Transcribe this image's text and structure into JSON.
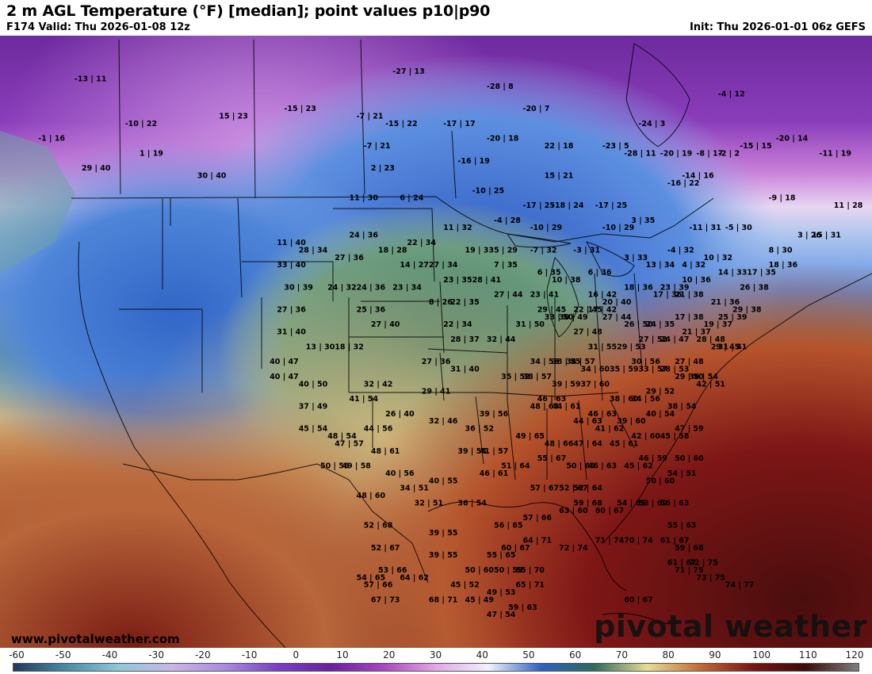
{
  "header": {
    "title": "2 m AGL Temperature (°F) [median]; point values p10|p90",
    "valid": "F174 Valid: Thu 2026-01-08 12z",
    "init": "Init: Thu 2026-01-01 06z GEFS"
  },
  "footer": {
    "credit": "www.pivotalweather.com",
    "brand": "pivotal weather"
  },
  "colorbar": {
    "ticks": [
      "-60",
      "-50",
      "-40",
      "-30",
      "-20",
      "-10",
      "0",
      "10",
      "20",
      "30",
      "40",
      "50",
      "60",
      "70",
      "80",
      "90",
      "100",
      "110",
      "120"
    ],
    "stops": [
      "#1f3a5c",
      "#4a8aa8",
      "#8ec9d6",
      "#c9b6e6",
      "#a78be0",
      "#7a3fc4",
      "#6b1f9e",
      "#a945c0",
      "#e3a7e6",
      "#eef2fb",
      "#2d5fc2",
      "#2f6b5a",
      "#e6dc94",
      "#c26a37",
      "#7a1414",
      "#3c0b0b",
      "#7d7d7d"
    ]
  },
  "points": [
    {
      "text": "-13 | 11",
      "lon": -155,
      "lat": 68
    },
    {
      "text": "-1 | 16",
      "lon": -160,
      "lat": 60
    },
    {
      "text": "-10 | 22",
      "lon": -148,
      "lat": 62
    },
    {
      "text": "1 | 19",
      "lon": -146,
      "lat": 58
    },
    {
      "text": "29 | 40",
      "lon": -154,
      "lat": 56
    },
    {
      "text": "30 | 40",
      "lon": -138,
      "lat": 55
    },
    {
      "text": "15 | 23",
      "lon": -135,
      "lat": 63
    },
    {
      "text": "-27 | 13",
      "lon": -111,
      "lat": 69
    },
    {
      "text": "-28 | 8",
      "lon": -98,
      "lat": 67
    },
    {
      "text": "-20 | 7",
      "lon": -93,
      "lat": 64
    },
    {
      "text": "-24 | 3",
      "lon": -77,
      "lat": 62
    },
    {
      "text": "-23 | 5",
      "lon": -82,
      "lat": 59
    },
    {
      "text": "-2 | 2",
      "lon": -66,
      "lat": 58
    },
    {
      "text": "-15 | 23",
      "lon": -126,
      "lat": 64
    },
    {
      "text": "-7 | 21",
      "lon": -116,
      "lat": 63
    },
    {
      "text": "-15 | 22",
      "lon": -112,
      "lat": 62
    },
    {
      "text": "-17 | 17",
      "lon": -104,
      "lat": 62
    },
    {
      "text": "-20 | 18",
      "lon": -98,
      "lat": 60
    },
    {
      "text": "22 | 18",
      "lon": -90,
      "lat": 59
    },
    {
      "text": "-28 | 11",
      "lon": -79,
      "lat": 58
    },
    {
      "text": "-20 | 19",
      "lon": -74,
      "lat": 58
    },
    {
      "text": "-7 | 21",
      "lon": -115,
      "lat": 59
    },
    {
      "text": "-16 | 19",
      "lon": -102,
      "lat": 57
    },
    {
      "text": "15 | 21",
      "lon": -90,
      "lat": 55
    },
    {
      "text": "-16 | 22",
      "lon": -73,
      "lat": 54
    },
    {
      "text": "2 | 23",
      "lon": -114,
      "lat": 56
    },
    {
      "text": "-10 | 25",
      "lon": -100,
      "lat": 53
    },
    {
      "text": "6 | 24",
      "lon": -110,
      "lat": 52
    },
    {
      "text": "11 | 30",
      "lon": -117,
      "lat": 52
    },
    {
      "text": "-17 | 25",
      "lon": -93,
      "lat": 51
    },
    {
      "text": "-18 | 24",
      "lon": -89,
      "lat": 51
    },
    {
      "text": "-17 | 25",
      "lon": -83,
      "lat": 51
    },
    {
      "text": "11 | 32",
      "lon": -104,
      "lat": 48
    },
    {
      "text": "-4 | 28",
      "lon": -97,
      "lat": 49
    },
    {
      "text": "-10 | 29",
      "lon": -92,
      "lat": 48
    },
    {
      "text": "-10 | 29",
      "lon": -82,
      "lat": 48
    },
    {
      "text": "3 | 35",
      "lon": -78,
      "lat": 49
    },
    {
      "text": "-11 | 31",
      "lon": -70,
      "lat": 48
    },
    {
      "text": "-5 | 30",
      "lon": -65,
      "lat": 48
    },
    {
      "text": "-9 | 18",
      "lon": -59,
      "lat": 52
    },
    {
      "text": "3 | 26",
      "lon": -55,
      "lat": 47
    },
    {
      "text": "15 | 31",
      "lon": -53,
      "lat": 47
    },
    {
      "text": "11 | 28",
      "lon": -50,
      "lat": 51
    },
    {
      "text": "8 | 30",
      "lon": -59,
      "lat": 45
    },
    {
      "text": "-4 | 32",
      "lon": -73,
      "lat": 45
    },
    {
      "text": "-8 | 17",
      "lon": -69,
      "lat": 58
    },
    {
      "text": "-14 | 16",
      "lon": -71,
      "lat": 55
    },
    {
      "text": "-15 | 15",
      "lon": -63,
      "lat": 59
    },
    {
      "text": "-20 | 14",
      "lon": -58,
      "lat": 60
    },
    {
      "text": "-11 | 19",
      "lon": -52,
      "lat": 58
    },
    {
      "text": "-4 | 12",
      "lon": -66,
      "lat": 66
    },
    {
      "text": "11 | 40",
      "lon": -127,
      "lat": 46
    },
    {
      "text": "28 | 34",
      "lon": -124,
      "lat": 45
    },
    {
      "text": "24 | 36",
      "lon": -117,
      "lat": 47
    },
    {
      "text": "27 | 36",
      "lon": -119,
      "lat": 44
    },
    {
      "text": "18 | 28",
      "lon": -113,
      "lat": 45
    },
    {
      "text": "22 | 34",
      "lon": -109,
      "lat": 46
    },
    {
      "text": "19 | 33",
      "lon": -101,
      "lat": 45
    },
    {
      "text": "5 | 29",
      "lon": -97,
      "lat": 45
    },
    {
      "text": "-7 | 32",
      "lon": -92,
      "lat": 45
    },
    {
      "text": "-3 | 31",
      "lon": -86,
      "lat": 45
    },
    {
      "text": "3 | 33",
      "lon": -79,
      "lat": 44
    },
    {
      "text": "33 | 40",
      "lon": -127,
      "lat": 43
    },
    {
      "text": "14 | 27",
      "lon": -110,
      "lat": 43
    },
    {
      "text": "27 | 34",
      "lon": -106,
      "lat": 43
    },
    {
      "text": "7 | 35",
      "lon": -97,
      "lat": 43
    },
    {
      "text": "6 | 35",
      "lon": -91,
      "lat": 42
    },
    {
      "text": "4 | 32",
      "lon": -71,
      "lat": 43
    },
    {
      "text": "10 | 32",
      "lon": -68,
      "lat": 44
    },
    {
      "text": "18 | 36",
      "lon": -59,
      "lat": 43
    },
    {
      "text": "17 | 35",
      "lon": -62,
      "lat": 42
    },
    {
      "text": "30 | 39",
      "lon": -126,
      "lat": 40
    },
    {
      "text": "24 | 32",
      "lon": -120,
      "lat": 40
    },
    {
      "text": "24 | 36",
      "lon": -116,
      "lat": 40
    },
    {
      "text": "23 | 34",
      "lon": -111,
      "lat": 40
    },
    {
      "text": "23 | 35",
      "lon": -104,
      "lat": 41
    },
    {
      "text": "28 | 41",
      "lon": -100,
      "lat": 41
    },
    {
      "text": "10 | 38",
      "lon": -89,
      "lat": 41
    },
    {
      "text": "6 | 36",
      "lon": -84,
      "lat": 42
    },
    {
      "text": "13 | 34",
      "lon": -76,
      "lat": 43
    },
    {
      "text": "10 | 36",
      "lon": -71,
      "lat": 41
    },
    {
      "text": "14 | 33",
      "lon": -66,
      "lat": 42
    },
    {
      "text": "26 | 38",
      "lon": -63,
      "lat": 40
    },
    {
      "text": "27 | 36",
      "lon": -127,
      "lat": 37
    },
    {
      "text": "25 | 36",
      "lon": -116,
      "lat": 37
    },
    {
      "text": "8 | 26",
      "lon": -106,
      "lat": 38
    },
    {
      "text": "22 | 35",
      "lon": -103,
      "lat": 38
    },
    {
      "text": "27 | 44",
      "lon": -97,
      "lat": 39
    },
    {
      "text": "23 | 41",
      "lon": -92,
      "lat": 39
    },
    {
      "text": "29 | 45",
      "lon": -91,
      "lat": 37
    },
    {
      "text": "16 | 42",
      "lon": -84,
      "lat": 39
    },
    {
      "text": "20 | 40",
      "lon": -82,
      "lat": 38
    },
    {
      "text": "18 | 36",
      "lon": -79,
      "lat": 40
    },
    {
      "text": "17 | 36",
      "lon": -75,
      "lat": 39
    },
    {
      "text": "23 | 39",
      "lon": -74,
      "lat": 40
    },
    {
      "text": "21 | 38",
      "lon": -72,
      "lat": 39
    },
    {
      "text": "21 | 36",
      "lon": -67,
      "lat": 38
    },
    {
      "text": "29 | 38",
      "lon": -64,
      "lat": 37
    },
    {
      "text": "25 | 39",
      "lon": -66,
      "lat": 36
    },
    {
      "text": "31 | 40",
      "lon": -127,
      "lat": 34
    },
    {
      "text": "13 | 30",
      "lon": -123,
      "lat": 32
    },
    {
      "text": "18 | 32",
      "lon": -119,
      "lat": 32
    },
    {
      "text": "27 | 40",
      "lon": -114,
      "lat": 35
    },
    {
      "text": "22 | 34",
      "lon": -104,
      "lat": 35
    },
    {
      "text": "28 | 37",
      "lon": -103,
      "lat": 33
    },
    {
      "text": "32 | 44",
      "lon": -98,
      "lat": 33
    },
    {
      "text": "31 | 50",
      "lon": -94,
      "lat": 35
    },
    {
      "text": "33 | 50",
      "lon": -90,
      "lat": 36
    },
    {
      "text": "30 | 49",
      "lon": -88,
      "lat": 36
    },
    {
      "text": "22 | 45",
      "lon": -86,
      "lat": 37
    },
    {
      "text": "17 | 42",
      "lon": -84,
      "lat": 37
    },
    {
      "text": "27 | 44",
      "lon": -82,
      "lat": 36
    },
    {
      "text": "26 | 50",
      "lon": -79,
      "lat": 35
    },
    {
      "text": "24 | 35",
      "lon": -76,
      "lat": 35
    },
    {
      "text": "17 | 38",
      "lon": -72,
      "lat": 36
    },
    {
      "text": "19 | 37",
      "lon": -68,
      "lat": 35
    },
    {
      "text": "31 | 41",
      "lon": -66,
      "lat": 32
    },
    {
      "text": "27 | 48",
      "lon": -86,
      "lat": 34
    },
    {
      "text": "31 | 55",
      "lon": -84,
      "lat": 32
    },
    {
      "text": "29 | 53",
      "lon": -80,
      "lat": 32
    },
    {
      "text": "27 | 52",
      "lon": -77,
      "lat": 33
    },
    {
      "text": "24 | 47",
      "lon": -74,
      "lat": 33
    },
    {
      "text": "21 | 37",
      "lon": -71,
      "lat": 34
    },
    {
      "text": "28 | 48",
      "lon": -69,
      "lat": 33
    },
    {
      "text": "29 | 45",
      "lon": -67,
      "lat": 32
    },
    {
      "text": "40 | 47",
      "lon": -128,
      "lat": 30
    },
    {
      "text": "40 | 47",
      "lon": -128,
      "lat": 28
    },
    {
      "text": "40 | 50",
      "lon": -124,
      "lat": 27
    },
    {
      "text": "37 | 49",
      "lon": -124,
      "lat": 24
    },
    {
      "text": "27 | 36",
      "lon": -107,
      "lat": 30
    },
    {
      "text": "31 | 40",
      "lon": -103,
      "lat": 29
    },
    {
      "text": "34 | 56",
      "lon": -92,
      "lat": 30
    },
    {
      "text": "38 | 55",
      "lon": -89,
      "lat": 30
    },
    {
      "text": "34 | 57",
      "lon": -87,
      "lat": 30
    },
    {
      "text": "34 | 60",
      "lon": -85,
      "lat": 29
    },
    {
      "text": "35 | 52",
      "lon": -96,
      "lat": 28
    },
    {
      "text": "38 | 57",
      "lon": -93,
      "lat": 28
    },
    {
      "text": "35 | 59",
      "lon": -81,
      "lat": 29
    },
    {
      "text": "30 | 56",
      "lon": -78,
      "lat": 30
    },
    {
      "text": "33 | 57",
      "lon": -77,
      "lat": 29
    },
    {
      "text": "28 | 53",
      "lon": -74,
      "lat": 29
    },
    {
      "text": "27 | 48",
      "lon": -72,
      "lat": 30
    },
    {
      "text": "36 | 54",
      "lon": -70,
      "lat": 28
    },
    {
      "text": "42 | 51",
      "lon": -69,
      "lat": 27
    },
    {
      "text": "29 | 50",
      "lon": -72,
      "lat": 28
    },
    {
      "text": "32 | 42",
      "lon": -115,
      "lat": 27
    },
    {
      "text": "29 | 41",
      "lon": -107,
      "lat": 26
    },
    {
      "text": "41 | 54",
      "lon": -117,
      "lat": 25
    },
    {
      "text": "39 | 59",
      "lon": -89,
      "lat": 27
    },
    {
      "text": "37 | 60",
      "lon": -85,
      "lat": 27
    },
    {
      "text": "38 | 60",
      "lon": -81,
      "lat": 25
    },
    {
      "text": "29 | 52",
      "lon": -76,
      "lat": 26
    },
    {
      "text": "34 | 56",
      "lon": -78,
      "lat": 25
    },
    {
      "text": "38 | 54",
      "lon": -73,
      "lat": 24
    },
    {
      "text": "46 | 63",
      "lon": -91,
      "lat": 25
    },
    {
      "text": "48 | 64",
      "lon": -92,
      "lat": 24
    },
    {
      "text": "44 | 61",
      "lon": -89,
      "lat": 24
    },
    {
      "text": "40 | 54",
      "lon": -76,
      "lat": 23
    },
    {
      "text": "47 | 59",
      "lon": -72,
      "lat": 21
    },
    {
      "text": "45 | 54",
      "lon": -124,
      "lat": 21
    },
    {
      "text": "26 | 40",
      "lon": -112,
      "lat": 23
    },
    {
      "text": "32 | 46",
      "lon": -106,
      "lat": 22
    },
    {
      "text": "39 | 56",
      "lon": -99,
      "lat": 23
    },
    {
      "text": "36 | 52",
      "lon": -101,
      "lat": 21
    },
    {
      "text": "44 | 63",
      "lon": -86,
      "lat": 22
    },
    {
      "text": "46 | 63",
      "lon": -84,
      "lat": 23
    },
    {
      "text": "41 | 62",
      "lon": -83,
      "lat": 21
    },
    {
      "text": "39 | 60",
      "lon": -80,
      "lat": 22
    },
    {
      "text": "48 | 54",
      "lon": -120,
      "lat": 20
    },
    {
      "text": "44 | 56",
      "lon": -115,
      "lat": 21
    },
    {
      "text": "49 | 65",
      "lon": -94,
      "lat": 20
    },
    {
      "text": "48 | 66",
      "lon": -90,
      "lat": 19
    },
    {
      "text": "45 | 61",
      "lon": -81,
      "lat": 19
    },
    {
      "text": "42 | 60",
      "lon": -78,
      "lat": 20
    },
    {
      "text": "45 | 58",
      "lon": -74,
      "lat": 20
    },
    {
      "text": "47 | 57",
      "lon": -119,
      "lat": 19
    },
    {
      "text": "48 | 61",
      "lon": -114,
      "lat": 18
    },
    {
      "text": "39 | 54",
      "lon": -102,
      "lat": 18
    },
    {
      "text": "41 | 57",
      "lon": -99,
      "lat": 18
    },
    {
      "text": "47 | 64",
      "lon": -86,
      "lat": 19
    },
    {
      "text": "55 | 67",
      "lon": -91,
      "lat": 17
    },
    {
      "text": "50 | 60",
      "lon": -72,
      "lat": 17
    },
    {
      "text": "50 | 56",
      "lon": -121,
      "lat": 16
    },
    {
      "text": "49 | 58",
      "lon": -118,
      "lat": 16
    },
    {
      "text": "40 | 56",
      "lon": -112,
      "lat": 15
    },
    {
      "text": "51 | 64",
      "lon": -96,
      "lat": 16
    },
    {
      "text": "50 | 66",
      "lon": -87,
      "lat": 16
    },
    {
      "text": "46 | 63",
      "lon": -84,
      "lat": 16
    },
    {
      "text": "45 | 62",
      "lon": -79,
      "lat": 16
    },
    {
      "text": "46 | 59",
      "lon": -77,
      "lat": 17
    },
    {
      "text": "54 | 51",
      "lon": -73,
      "lat": 15
    },
    {
      "text": "46 | 61",
      "lon": -99,
      "lat": 15
    },
    {
      "text": "40 | 55",
      "lon": -106,
      "lat": 14
    },
    {
      "text": "34 | 51",
      "lon": -110,
      "lat": 13
    },
    {
      "text": "50 | 60",
      "lon": -76,
      "lat": 14
    },
    {
      "text": "57 | 67",
      "lon": -92,
      "lat": 13
    },
    {
      "text": "52 | 67",
      "lon": -88,
      "lat": 13
    },
    {
      "text": "52 | 64",
      "lon": -86,
      "lat": 13
    },
    {
      "text": "48 | 60",
      "lon": -116,
      "lat": 12
    },
    {
      "text": "32 | 51",
      "lon": -108,
      "lat": 11
    },
    {
      "text": "36 | 54",
      "lon": -102,
      "lat": 11
    },
    {
      "text": "59 | 68",
      "lon": -86,
      "lat": 11
    },
    {
      "text": "54 | 65",
      "lon": -80,
      "lat": 11
    },
    {
      "text": "53 | 60",
      "lon": -77,
      "lat": 11
    },
    {
      "text": "56 | 63",
      "lon": -74,
      "lat": 11
    },
    {
      "text": "63 | 60",
      "lon": -88,
      "lat": 10
    },
    {
      "text": "60 | 67",
      "lon": -83,
      "lat": 10
    },
    {
      "text": "52 | 68",
      "lon": -115,
      "lat": 8
    },
    {
      "text": "57 | 66",
      "lon": -93,
      "lat": 9
    },
    {
      "text": "56 | 65",
      "lon": -97,
      "lat": 8
    },
    {
      "text": "55 | 63",
      "lon": -73,
      "lat": 8
    },
    {
      "text": "39 | 55",
      "lon": -106,
      "lat": 7
    },
    {
      "text": "52 | 67",
      "lon": -114,
      "lat": 5
    },
    {
      "text": "60 | 67",
      "lon": -96,
      "lat": 5
    },
    {
      "text": "64 | 71",
      "lon": -93,
      "lat": 6
    },
    {
      "text": "72 | 74",
      "lon": -88,
      "lat": 5
    },
    {
      "text": "71 | 74",
      "lon": -83,
      "lat": 6
    },
    {
      "text": "70 | 74",
      "lon": -79,
      "lat": 6
    },
    {
      "text": "61 | 67",
      "lon": -74,
      "lat": 6
    },
    {
      "text": "59 | 68",
      "lon": -72,
      "lat": 5
    },
    {
      "text": "39 | 55",
      "lon": -106,
      "lat": 4
    },
    {
      "text": "55 | 65",
      "lon": -98,
      "lat": 4
    },
    {
      "text": "61 | 67",
      "lon": -73,
      "lat": 3
    },
    {
      "text": "72 | 75",
      "lon": -70,
      "lat": 3
    },
    {
      "text": "53 | 66",
      "lon": -113,
      "lat": 2
    },
    {
      "text": "50 | 60",
      "lon": -101,
      "lat": 2
    },
    {
      "text": "50 | 59",
      "lon": -97,
      "lat": 2
    },
    {
      "text": "65 | 70",
      "lon": -94,
      "lat": 2
    },
    {
      "text": "71 | 75",
      "lon": -72,
      "lat": 2
    },
    {
      "text": "54 | 65",
      "lon": -116,
      "lat": 1
    },
    {
      "text": "64 | 62",
      "lon": -110,
      "lat": 1
    },
    {
      "text": "65 | 71",
      "lon": -94,
      "lat": 0
    },
    {
      "text": "57 | 66",
      "lon": -115,
      "lat": 0
    },
    {
      "text": "45 | 52",
      "lon": -103,
      "lat": 0
    },
    {
      "text": "73 | 75",
      "lon": -69,
      "lat": 1
    },
    {
      "text": "74 | 77",
      "lon": -65,
      "lat": 0
    },
    {
      "text": "49 | 53",
      "lon": -98,
      "lat": -1
    },
    {
      "text": "45 | 49",
      "lon": -101,
      "lat": -2
    },
    {
      "text": "67 | 73",
      "lon": -114,
      "lat": -2
    },
    {
      "text": "68 | 71",
      "lon": -106,
      "lat": -2
    },
    {
      "text": "59 | 63",
      "lon": -95,
      "lat": -3
    },
    {
      "text": "60 | 67",
      "lon": -79,
      "lat": -2
    },
    {
      "text": "47 | 54",
      "lon": -98,
      "lat": -4
    }
  ]
}
